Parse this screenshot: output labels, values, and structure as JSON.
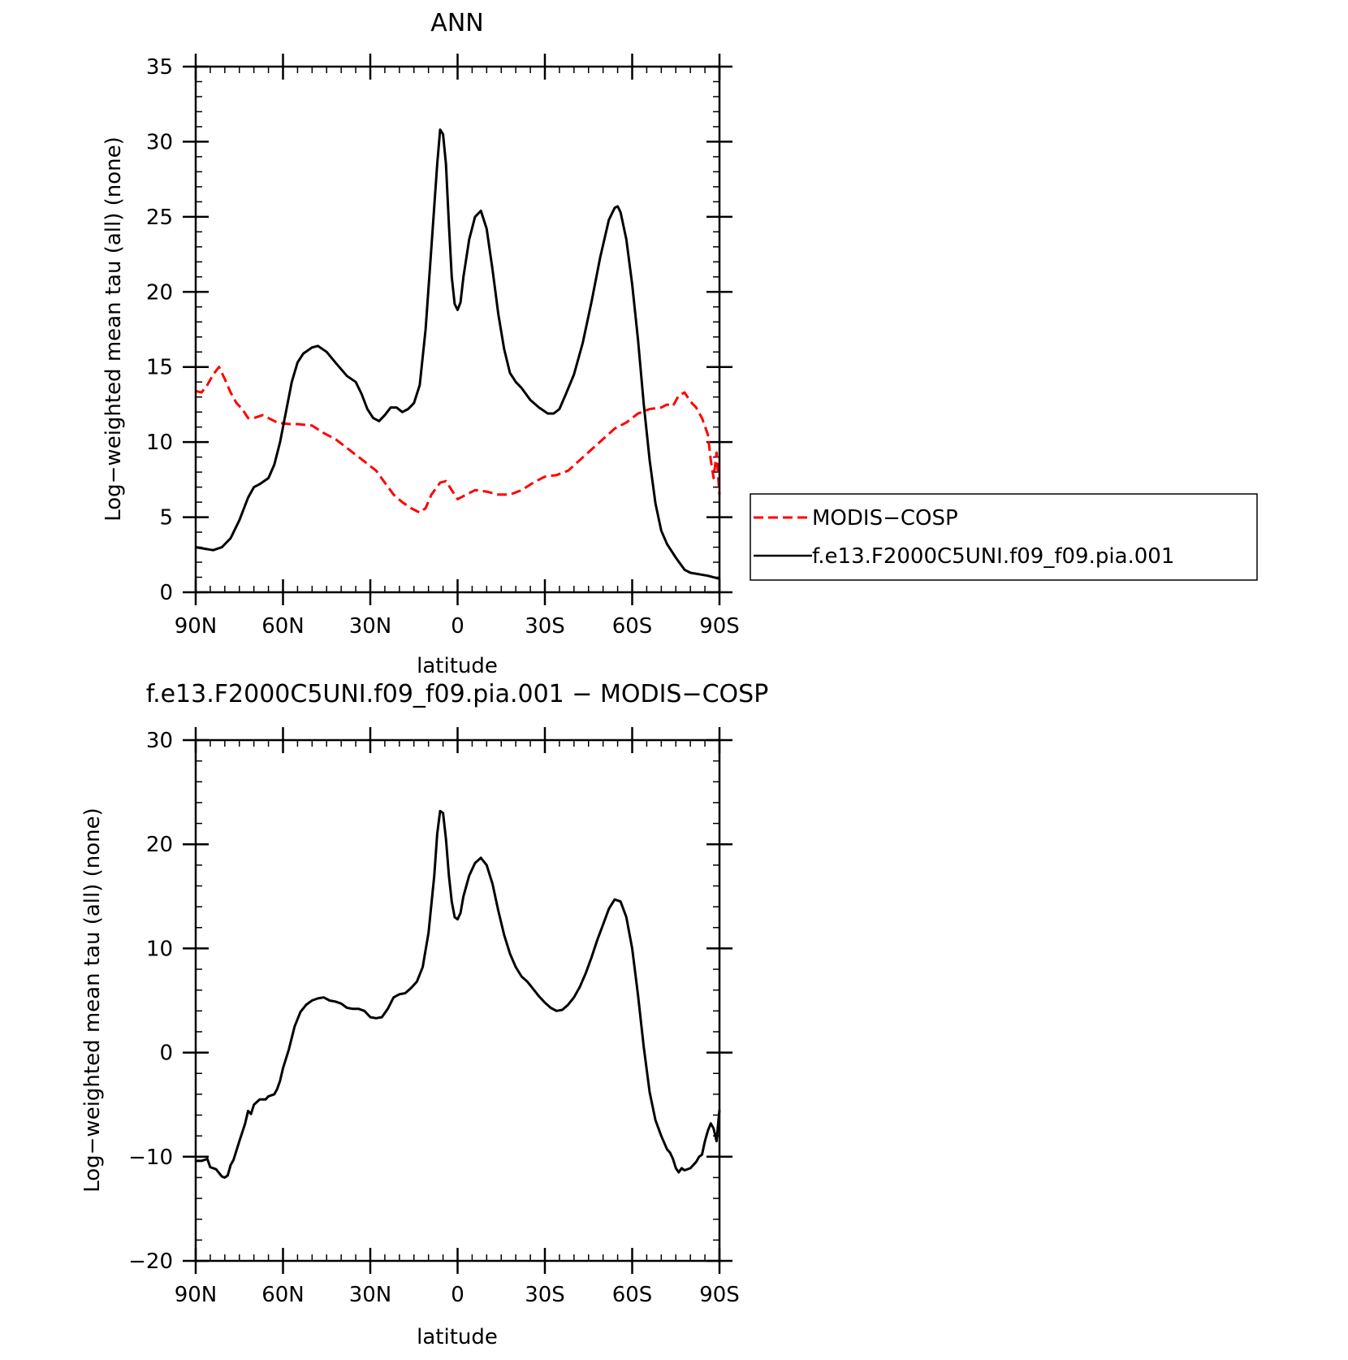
{
  "chart_data": [
    {
      "type": "line",
      "title": "ANN",
      "xlabel": "latitude",
      "ylabel": "Log−weighted mean tau (all) (none)",
      "xlim": [
        90,
        -90
      ],
      "ylim": [
        0,
        35
      ],
      "x_ticks": [
        {
          "value": 90,
          "label": "90N"
        },
        {
          "value": 60,
          "label": "60N"
        },
        {
          "value": 30,
          "label": "30N"
        },
        {
          "value": 0,
          "label": "0"
        },
        {
          "value": -30,
          "label": "30S"
        },
        {
          "value": -60,
          "label": "60S"
        },
        {
          "value": -90,
          "label": "90S"
        }
      ],
      "y_ticks": [
        {
          "value": 0,
          "label": "0"
        },
        {
          "value": 5,
          "label": "5"
        },
        {
          "value": 10,
          "label": "10"
        },
        {
          "value": 15,
          "label": "15"
        },
        {
          "value": 20,
          "label": "20"
        },
        {
          "value": 25,
          "label": "25"
        },
        {
          "value": 30,
          "label": "30"
        },
        {
          "value": 35,
          "label": "35"
        }
      ],
      "legend_position": "right",
      "series": [
        {
          "name": "MODIS−COSP",
          "color": "#ff0000",
          "dash": "dashed",
          "points": [
            [
              90,
              13.4
            ],
            [
              88,
              13.3
            ],
            [
              86,
              13.8
            ],
            [
              84,
              14.5
            ],
            [
              82,
              15.0
            ],
            [
              80,
              14.2
            ],
            [
              78,
              13.3
            ],
            [
              76,
              12.6
            ],
            [
              74,
              12.2
            ],
            [
              72,
              11.6
            ],
            [
              70,
              11.6
            ],
            [
              67,
              11.8
            ],
            [
              64,
              11.5
            ],
            [
              62,
              11.3
            ],
            [
              58,
              11.2
            ],
            [
              55,
              11.2
            ],
            [
              50,
              11.1
            ],
            [
              46,
              10.6
            ],
            [
              42,
              10.2
            ],
            [
              38,
              9.6
            ],
            [
              34,
              9.0
            ],
            [
              30,
              8.4
            ],
            [
              28,
              8.1
            ],
            [
              25,
              7.3
            ],
            [
              22,
              6.5
            ],
            [
              19,
              6.0
            ],
            [
              16,
              5.6
            ],
            [
              13,
              5.3
            ],
            [
              11,
              5.6
            ],
            [
              9,
              6.5
            ],
            [
              6,
              7.3
            ],
            [
              4,
              7.4
            ],
            [
              2,
              6.8
            ],
            [
              0,
              6.2
            ],
            [
              -3,
              6.5
            ],
            [
              -6,
              6.8
            ],
            [
              -10,
              6.7
            ],
            [
              -14,
              6.5
            ],
            [
              -18,
              6.5
            ],
            [
              -22,
              6.8
            ],
            [
              -26,
              7.3
            ],
            [
              -30,
              7.7
            ],
            [
              -34,
              7.8
            ],
            [
              -38,
              8.1
            ],
            [
              -42,
              8.8
            ],
            [
              -46,
              9.5
            ],
            [
              -50,
              10.2
            ],
            [
              -54,
              10.9
            ],
            [
              -58,
              11.3
            ],
            [
              -62,
              11.9
            ],
            [
              -66,
              12.2
            ],
            [
              -70,
              12.3
            ],
            [
              -72,
              12.5
            ],
            [
              -74,
              12.4
            ],
            [
              -76,
              13.1
            ],
            [
              -78,
              13.3
            ],
            [
              -80,
              12.7
            ],
            [
              -82,
              12.3
            ],
            [
              -84,
              11.6
            ],
            [
              -86,
              10.5
            ],
            [
              -87,
              8.8
            ],
            [
              -88,
              7.6
            ],
            [
              -89,
              9.3
            ],
            [
              -90,
              6.5
            ]
          ]
        },
        {
          "name": "f.e13.F2000C5UNI.f09_f09.pia.001",
          "color": "#000000",
          "dash": "solid",
          "points": [
            [
              90,
              3.0
            ],
            [
              87,
              2.9
            ],
            [
              84,
              2.8
            ],
            [
              81,
              3.0
            ],
            [
              78,
              3.6
            ],
            [
              75,
              4.8
            ],
            [
              72,
              6.3
            ],
            [
              70,
              7.0
            ],
            [
              68,
              7.2
            ],
            [
              65,
              7.6
            ],
            [
              63,
              8.5
            ],
            [
              61,
              10.0
            ],
            [
              59,
              12.0
            ],
            [
              57,
              14.0
            ],
            [
              55,
              15.3
            ],
            [
              53,
              15.9
            ],
            [
              50,
              16.3
            ],
            [
              48,
              16.4
            ],
            [
              45,
              16.0
            ],
            [
              42,
              15.3
            ],
            [
              38,
              14.4
            ],
            [
              35,
              14.0
            ],
            [
              33,
              13.2
            ],
            [
              31,
              12.2
            ],
            [
              29,
              11.6
            ],
            [
              27,
              11.4
            ],
            [
              25,
              11.8
            ],
            [
              23,
              12.3
            ],
            [
              21,
              12.3
            ],
            [
              19,
              12.0
            ],
            [
              17,
              12.2
            ],
            [
              15,
              12.6
            ],
            [
              13,
              13.8
            ],
            [
              11,
              17.5
            ],
            [
              9,
              23.0
            ],
            [
              7,
              28.5
            ],
            [
              6,
              30.8
            ],
            [
              5,
              30.5
            ],
            [
              4,
              28.5
            ],
            [
              3,
              24.5
            ],
            [
              2,
              21.0
            ],
            [
              1,
              19.2
            ],
            [
              0,
              18.8
            ],
            [
              -1,
              19.3
            ],
            [
              -2,
              21.0
            ],
            [
              -4,
              23.5
            ],
            [
              -6,
              25.0
            ],
            [
              -8,
              25.4
            ],
            [
              -10,
              24.2
            ],
            [
              -12,
              21.5
            ],
            [
              -14,
              18.5
            ],
            [
              -16,
              16.2
            ],
            [
              -18,
              14.6
            ],
            [
              -20,
              14.0
            ],
            [
              -22,
              13.6
            ],
            [
              -25,
              12.8
            ],
            [
              -28,
              12.3
            ],
            [
              -31,
              11.9
            ],
            [
              -33,
              11.9
            ],
            [
              -35,
              12.2
            ],
            [
              -37,
              13.1
            ],
            [
              -40,
              14.5
            ],
            [
              -43,
              16.6
            ],
            [
              -46,
              19.3
            ],
            [
              -49,
              22.3
            ],
            [
              -52,
              24.8
            ],
            [
              -54,
              25.6
            ],
            [
              -55,
              25.7
            ],
            [
              -56,
              25.3
            ],
            [
              -58,
              23.5
            ],
            [
              -60,
              20.5
            ],
            [
              -62,
              16.8
            ],
            [
              -64,
              12.5
            ],
            [
              -66,
              8.8
            ],
            [
              -68,
              5.9
            ],
            [
              -70,
              4.1
            ],
            [
              -72,
              3.2
            ],
            [
              -75,
              2.3
            ],
            [
              -78,
              1.5
            ],
            [
              -80,
              1.3
            ],
            [
              -83,
              1.2
            ],
            [
              -86,
              1.1
            ],
            [
              -90,
              0.9
            ]
          ]
        }
      ]
    },
    {
      "type": "line",
      "title": "f.e13.F2000C5UNI.f09_f09.pia.001  −  MODIS−COSP",
      "xlabel": "latitude",
      "ylabel": "Log−weighted mean tau (all) (none)",
      "xlim": [
        90,
        -90
      ],
      "ylim": [
        -20,
        30
      ],
      "x_ticks": [
        {
          "value": 90,
          "label": "90N"
        },
        {
          "value": 60,
          "label": "60N"
        },
        {
          "value": 30,
          "label": "30N"
        },
        {
          "value": 0,
          "label": "0"
        },
        {
          "value": -30,
          "label": "30S"
        },
        {
          "value": -60,
          "label": "60S"
        },
        {
          "value": -90,
          "label": "90S"
        }
      ],
      "y_ticks": [
        {
          "value": -20,
          "label": "−20"
        },
        {
          "value": -10,
          "label": "−10"
        },
        {
          "value": 0,
          "label": "0"
        },
        {
          "value": 10,
          "label": "10"
        },
        {
          "value": 20,
          "label": "20"
        },
        {
          "value": 30,
          "label": "30"
        }
      ],
      "series": [
        {
          "color": "#000000",
          "dash": "solid",
          "points": [
            [
              90,
              -10.4
            ],
            [
              88,
              -10.4
            ],
            [
              86,
              -10.2
            ],
            [
              85,
              -11.0
            ],
            [
              83,
              -11.2
            ],
            [
              81,
              -11.9
            ],
            [
              80,
              -12.0
            ],
            [
              79,
              -11.8
            ],
            [
              78,
              -10.8
            ],
            [
              77,
              -10.3
            ],
            [
              75,
              -8.5
            ],
            [
              73,
              -6.8
            ],
            [
              72,
              -5.6
            ],
            [
              71,
              -5.9
            ],
            [
              70,
              -5.0
            ],
            [
              68,
              -4.5
            ],
            [
              66,
              -4.5
            ],
            [
              65,
              -4.2
            ],
            [
              63,
              -4.0
            ],
            [
              62,
              -3.5
            ],
            [
              61,
              -2.7
            ],
            [
              60,
              -1.5
            ],
            [
              58,
              0.3
            ],
            [
              56,
              2.5
            ],
            [
              54,
              3.9
            ],
            [
              52,
              4.6
            ],
            [
              50,
              5.0
            ],
            [
              48,
              5.2
            ],
            [
              46,
              5.3
            ],
            [
              44,
              5.0
            ],
            [
              42,
              4.9
            ],
            [
              40,
              4.7
            ],
            [
              38,
              4.3
            ],
            [
              36,
              4.2
            ],
            [
              34,
              4.2
            ],
            [
              32,
              4.0
            ],
            [
              30,
              3.4
            ],
            [
              28,
              3.3
            ],
            [
              26,
              3.4
            ],
            [
              24,
              4.2
            ],
            [
              22,
              5.3
            ],
            [
              20,
              5.6
            ],
            [
              18,
              5.7
            ],
            [
              16,
              6.2
            ],
            [
              14,
              6.8
            ],
            [
              12,
              8.2
            ],
            [
              10,
              11.5
            ],
            [
              8,
              17.0
            ],
            [
              7,
              21.0
            ],
            [
              6,
              23.2
            ],
            [
              5,
              23.0
            ],
            [
              4,
              20.5
            ],
            [
              3,
              17.0
            ],
            [
              2,
              14.5
            ],
            [
              1,
              13.0
            ],
            [
              0,
              12.8
            ],
            [
              -1,
              13.4
            ],
            [
              -2,
              15.0
            ],
            [
              -4,
              17.0
            ],
            [
              -6,
              18.2
            ],
            [
              -8,
              18.7
            ],
            [
              -10,
              18.0
            ],
            [
              -12,
              16.2
            ],
            [
              -14,
              13.6
            ],
            [
              -16,
              11.3
            ],
            [
              -18,
              9.5
            ],
            [
              -20,
              8.2
            ],
            [
              -22,
              7.3
            ],
            [
              -24,
              6.8
            ],
            [
              -26,
              6.1
            ],
            [
              -28,
              5.4
            ],
            [
              -30,
              4.8
            ],
            [
              -32,
              4.3
            ],
            [
              -34,
              4.0
            ],
            [
              -36,
              4.1
            ],
            [
              -38,
              4.6
            ],
            [
              -40,
              5.3
            ],
            [
              -42,
              6.3
            ],
            [
              -44,
              7.6
            ],
            [
              -46,
              9.1
            ],
            [
              -48,
              10.8
            ],
            [
              -50,
              12.3
            ],
            [
              -52,
              13.8
            ],
            [
              -54,
              14.7
            ],
            [
              -56,
              14.5
            ],
            [
              -58,
              13.0
            ],
            [
              -60,
              10.0
            ],
            [
              -62,
              5.5
            ],
            [
              -64,
              0.5
            ],
            [
              -66,
              -3.8
            ],
            [
              -68,
              -6.5
            ],
            [
              -70,
              -8.0
            ],
            [
              -72,
              -9.3
            ],
            [
              -73,
              -9.6
            ],
            [
              -74,
              -10.2
            ],
            [
              -75,
              -11.1
            ],
            [
              -76,
              -11.5
            ],
            [
              -77,
              -11.1
            ],
            [
              -78,
              -11.3
            ],
            [
              -80,
              -11.1
            ],
            [
              -82,
              -10.5
            ],
            [
              -83,
              -10.0
            ],
            [
              -84,
              -9.8
            ],
            [
              -85,
              -8.5
            ],
            [
              -86,
              -7.5
            ],
            [
              -87,
              -6.8
            ],
            [
              -88,
              -7.3
            ],
            [
              -89,
              -8.5
            ],
            [
              -90,
              -5.5
            ]
          ]
        }
      ]
    }
  ]
}
